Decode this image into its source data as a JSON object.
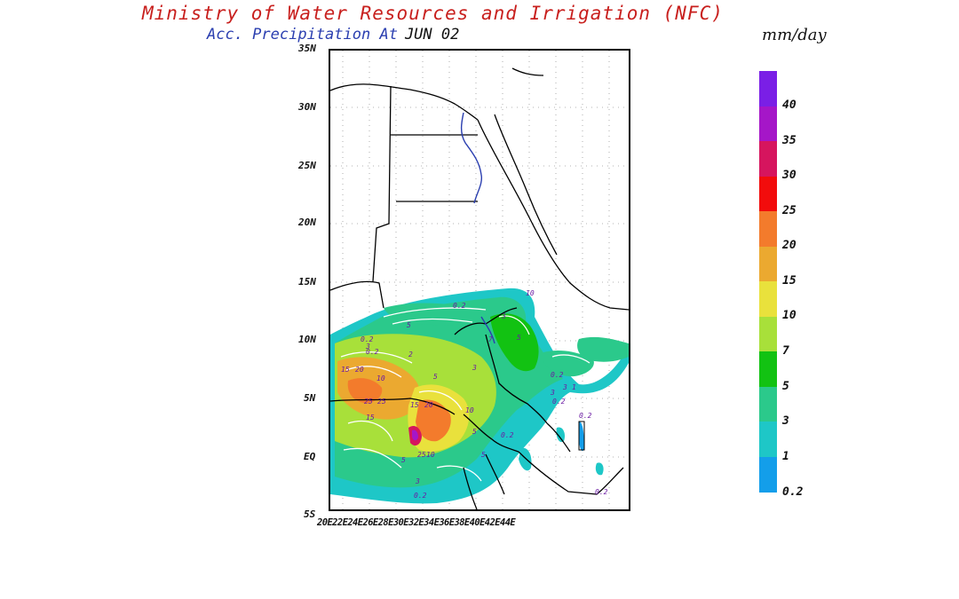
{
  "header": {
    "title": "Ministry of Water Resources and Irrigation (NFC)",
    "subtitle_label": "Acc. Precipitation  At",
    "date": "JUN 02",
    "units": "mm/day"
  },
  "map": {
    "lat_labels": [
      "35N",
      "30N",
      "25N",
      "20N",
      "15N",
      "10N",
      "5N",
      "EQ",
      "5S"
    ],
    "lon_labels_text": "20E22E24E26E28E30E32E34E36E38E40E42E44E",
    "contour_labels": [
      "0.2",
      "10",
      "3",
      "5",
      "0.2",
      "3",
      "5",
      "0.2",
      "2",
      "7",
      "15",
      "20",
      "10",
      "5",
      "3",
      "25",
      "0.2",
      "3",
      "1",
      "25",
      "15",
      "20",
      "10",
      "3",
      "5",
      "15",
      "5",
      "0.2",
      "25",
      "10",
      "5",
      "3",
      "0.2",
      "0.2",
      "0.2",
      "0.2"
    ]
  },
  "legend": {
    "labels": [
      "40",
      "35",
      "30",
      "25",
      "20",
      "15",
      "10",
      "7",
      "5",
      "3",
      "1",
      "0.2"
    ],
    "colors": [
      "#7a1fe6",
      "#a516c8",
      "#d6155e",
      "#f20c0c",
      "#f37b2c",
      "#eba930",
      "#e9e13c",
      "#a8e03a",
      "#12c212",
      "#2bc98b",
      "#1ec7c7",
      "#139eea"
    ]
  }
}
